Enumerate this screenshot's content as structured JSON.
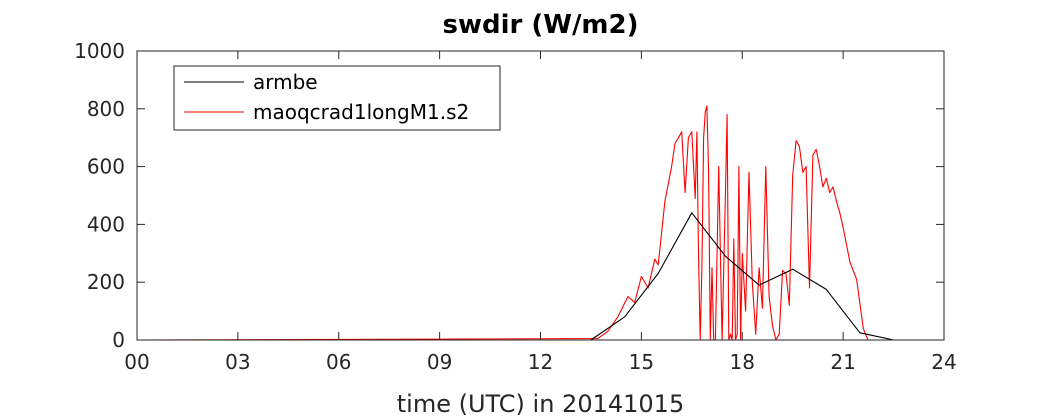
{
  "chart_data": {
    "type": "line",
    "title": "swdir  (W/m2)",
    "xlabel": "time (UTC) in 20141015",
    "ylabel": "",
    "xlim": [
      0,
      24
    ],
    "ylim": [
      0,
      1000
    ],
    "xticks": [
      0,
      3,
      6,
      9,
      12,
      15,
      18,
      21,
      24
    ],
    "xtick_labels": [
      "00",
      "03",
      "06",
      "09",
      "12",
      "15",
      "18",
      "21",
      "24"
    ],
    "yticks": [
      0,
      200,
      400,
      600,
      800,
      1000
    ],
    "ytick_labels": [
      "0",
      "200",
      "400",
      "600",
      "800",
      "1000"
    ],
    "grid": false,
    "legend_position": "top-left",
    "series": [
      {
        "name": "armbe",
        "color": "#000000",
        "x": [
          0,
          13.5,
          14.5,
          15.5,
          16.5,
          17.5,
          18.5,
          19.5,
          20.5,
          21.5,
          22.5,
          24
        ],
        "y": [
          0,
          0,
          80,
          230,
          440,
          290,
          190,
          245,
          175,
          25,
          0,
          0
        ]
      },
      {
        "name": "maoqcrad1longM1.s2",
        "color": "#ff0000",
        "x": [
          0,
          13.7,
          14.0,
          14.3,
          14.6,
          14.8,
          15.0,
          15.2,
          15.4,
          15.5,
          15.7,
          15.9,
          16.0,
          16.1,
          16.2,
          16.3,
          16.4,
          16.5,
          16.6,
          16.65,
          16.7,
          16.75,
          16.8,
          16.85,
          16.9,
          16.95,
          17.0,
          17.05,
          17.1,
          17.15,
          17.2,
          17.3,
          17.4,
          17.5,
          17.55,
          17.6,
          17.65,
          17.7,
          17.75,
          17.8,
          17.85,
          17.9,
          17.95,
          18.0,
          18.1,
          18.2,
          18.3,
          18.4,
          18.5,
          18.6,
          18.7,
          18.8,
          18.9,
          19.0,
          19.1,
          19.2,
          19.3,
          19.4,
          19.5,
          19.6,
          19.7,
          19.8,
          19.9,
          20.0,
          20.1,
          20.2,
          20.3,
          20.4,
          20.5,
          20.6,
          20.7,
          20.8,
          20.9,
          21.0,
          21.2,
          21.4,
          21.6,
          21.7,
          21.75,
          24
        ],
        "y": [
          0,
          5,
          30,
          80,
          150,
          130,
          220,
          180,
          280,
          260,
          480,
          600,
          680,
          700,
          720,
          510,
          700,
          720,
          490,
          720,
          300,
          0,
          250,
          700,
          790,
          810,
          580,
          0,
          250,
          0,
          0,
          600,
          0,
          500,
          780,
          0,
          20,
          0,
          350,
          0,
          20,
          600,
          0,
          300,
          100,
          580,
          200,
          20,
          250,
          110,
          600,
          150,
          50,
          0,
          20,
          240,
          230,
          120,
          570,
          690,
          670,
          580,
          600,
          180,
          640,
          660,
          600,
          530,
          560,
          510,
          530,
          480,
          440,
          390,
          270,
          210,
          40,
          10,
          0,
          0
        ]
      }
    ]
  }
}
